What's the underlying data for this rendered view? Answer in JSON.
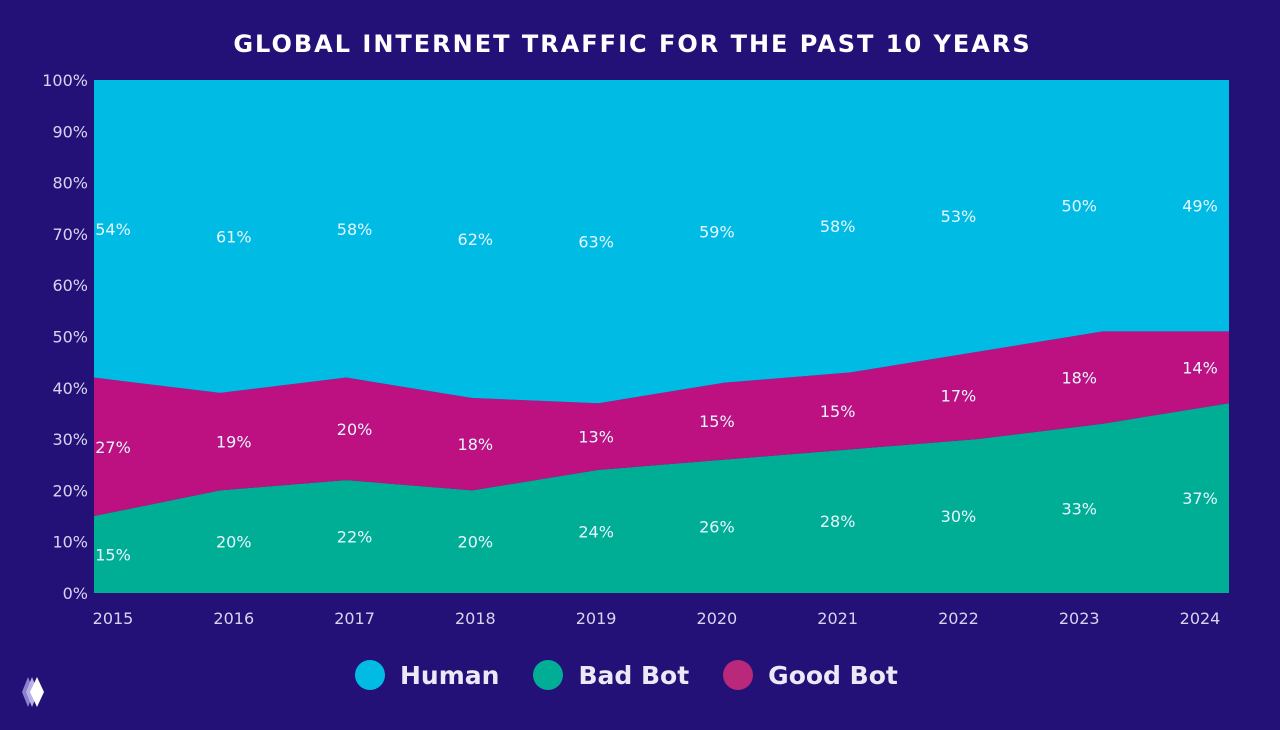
{
  "title": "GLOBAL INTERNET TRAFFIC FOR THE PAST 10 YEARS",
  "chart_data": {
    "type": "area",
    "stacked": true,
    "title": "GLOBAL INTERNET TRAFFIC FOR THE PAST 10 YEARS",
    "categories": [
      "2015",
      "2016",
      "2017",
      "2018",
      "2019",
      "2020",
      "2021",
      "2022",
      "2023",
      "2024"
    ],
    "y_ticks": [
      "0%",
      "10%",
      "20%",
      "30%",
      "40%",
      "50%",
      "60%",
      "70%",
      "80%",
      "90%",
      "100%"
    ],
    "ylim": [
      0,
      100
    ],
    "grid": false,
    "legend_position": "bottom",
    "series": [
      {
        "name": "Bad Bot",
        "color": "#00ae96",
        "values": [
          15,
          20,
          22,
          20,
          24,
          26,
          28,
          30,
          33,
          37
        ]
      },
      {
        "name": "Good Bot",
        "color": "#bd1182",
        "values": [
          27,
          19,
          20,
          18,
          13,
          15,
          15,
          17,
          18,
          14
        ]
      },
      {
        "name": "Human",
        "color": "#00bce4",
        "values": [
          54,
          61,
          58,
          62,
          63,
          59,
          58,
          53,
          50,
          49
        ]
      }
    ]
  },
  "legend": [
    {
      "label": "Human",
      "color": "#00bce4"
    },
    {
      "label": "Bad Bot",
      "color": "#00ae96"
    },
    {
      "label": "Good Bot",
      "color": "#b9287a"
    }
  ]
}
